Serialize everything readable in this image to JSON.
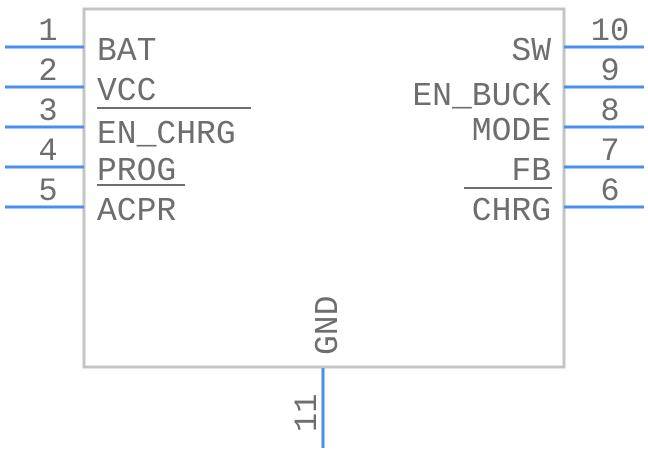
{
  "colors": {
    "pin": "#4a8ff0",
    "body_outline": "#c4c4c4",
    "text": "#6e6e6e"
  },
  "left_pins": [
    {
      "number": "1",
      "name": "BAT",
      "overline": false
    },
    {
      "number": "2",
      "name": "VCC",
      "overline": false
    },
    {
      "number": "3",
      "name": "EN_CHRG",
      "overline": true
    },
    {
      "number": "4",
      "name": "PROG",
      "overline": false
    },
    {
      "number": "5",
      "name": "ACPR",
      "overline": true
    }
  ],
  "right_pins": [
    {
      "number": "10",
      "name": "SW",
      "overline": false
    },
    {
      "number": "9",
      "name": "EN_BUCK",
      "overline": false
    },
    {
      "number": "8",
      "name": "MODE",
      "overline": false
    },
    {
      "number": "7",
      "name": "FB",
      "overline": false
    },
    {
      "number": "6",
      "name": "CHRG",
      "overline": true
    }
  ],
  "bottom_pin": {
    "number": "11",
    "name": "GND"
  }
}
